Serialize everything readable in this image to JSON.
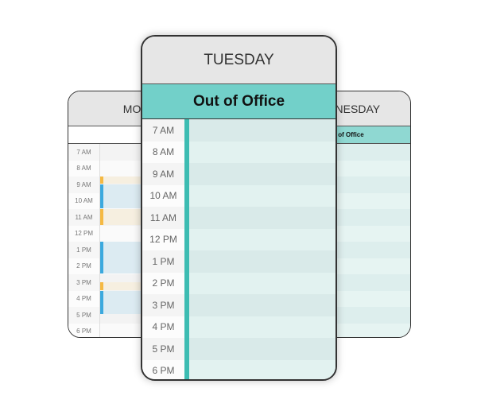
{
  "times": [
    "7 AM",
    "8 AM",
    "9 AM",
    "10 AM",
    "11 AM",
    "12 PM",
    "1 PM",
    "2 PM",
    "3 PM",
    "4 PM",
    "5 PM",
    "6 PM"
  ],
  "monday": {
    "title": "MONDAY",
    "events": [
      {
        "start": 9,
        "end": 9.5,
        "color": "#f5b942",
        "fill": "#f6efe0"
      },
      {
        "start": 9.5,
        "end": 11,
        "color": "#3ba9de",
        "fill": "#dcebf2"
      },
      {
        "start": 11,
        "end": 12,
        "color": "#f5b942",
        "fill": "#f6efe0"
      },
      {
        "start": 13,
        "end": 15,
        "color": "#3ba9de",
        "fill": "#dcebf2"
      },
      {
        "start": 15.5,
        "end": 16,
        "color": "#f5b942",
        "fill": "#f6efe0"
      },
      {
        "start": 16,
        "end": 17.5,
        "color": "#3ba9de",
        "fill": "#dcebf2"
      }
    ]
  },
  "tuesday": {
    "title": "TUESDAY",
    "banner": "Out of Office",
    "accent": "#3dbcb2",
    "banner_color": "#72d0c9"
  },
  "wednesday": {
    "title": "WEDNESDAY",
    "banner": "Out of Office"
  }
}
